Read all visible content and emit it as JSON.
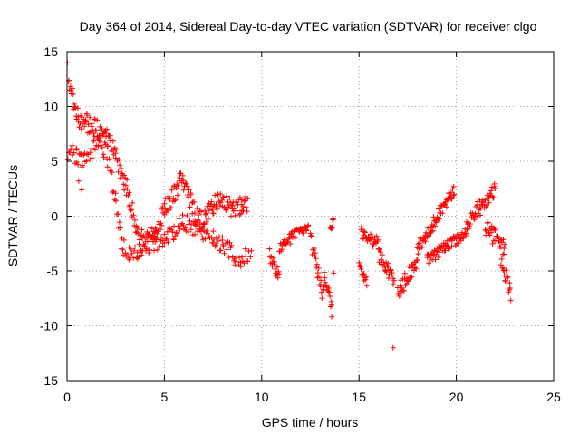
{
  "chart_data": {
    "type": "scatter",
    "title": "Day 364 of 2014, Sidereal Day-to-day VTEC variation (SDTVAR) for receiver clgo",
    "xlabel": "GPS time / hours",
    "ylabel": "SDTVAR / TECUs",
    "xlim": [
      0,
      25
    ],
    "ylim": [
      -15,
      15
    ],
    "xticks": [
      "0",
      "5",
      "10",
      "15",
      "20",
      "25"
    ],
    "yticks": [
      "15",
      "10",
      "5",
      "0",
      "-5",
      "-10",
      "-15"
    ],
    "grid": true,
    "marker": "+",
    "series_color": "#ff0000",
    "series": [
      {
        "name": "SDTVAR",
        "trace": [
          [
            0.0,
            14.0
          ],
          [
            0.1,
            12.5
          ],
          [
            0.3,
            10.5
          ],
          [
            0.6,
            9.0
          ],
          [
            1.0,
            8.5
          ],
          [
            1.5,
            8.0
          ],
          [
            2.0,
            7.5
          ],
          [
            2.5,
            5.5
          ],
          [
            3.0,
            3.0
          ],
          [
            3.3,
            1.0
          ],
          [
            3.6,
            -1.5
          ],
          [
            4.0,
            -2.5
          ],
          [
            4.5,
            -1.5
          ],
          [
            5.0,
            0.5
          ],
          [
            5.5,
            2.0
          ],
          [
            5.9,
            3.8
          ],
          [
            6.2,
            2.0
          ],
          [
            6.6,
            0.0
          ],
          [
            7.0,
            -0.5
          ],
          [
            7.5,
            1.0
          ],
          [
            8.0,
            1.5
          ],
          [
            8.5,
            0.5
          ],
          [
            9.0,
            1.0
          ],
          [
            9.3,
            1.2
          ]
        ],
        "trace_lower": [
          [
            0.0,
            6.0
          ],
          [
            0.5,
            5.5
          ],
          [
            1.0,
            5.0
          ],
          [
            1.5,
            6.5
          ],
          [
            2.0,
            6.0
          ],
          [
            2.5,
            1.5
          ],
          [
            2.8,
            -2.5
          ],
          [
            3.2,
            -3.5
          ],
          [
            3.8,
            -3.0
          ],
          [
            4.5,
            -2.5
          ],
          [
            5.0,
            -2.0
          ],
          [
            5.5,
            -1.5
          ],
          [
            6.0,
            -0.5
          ],
          [
            6.5,
            -1.0
          ],
          [
            7.0,
            -1.5
          ],
          [
            7.5,
            -2.0
          ],
          [
            8.0,
            -2.5
          ],
          [
            8.5,
            -3.5
          ],
          [
            9.0,
            -4.0
          ],
          [
            9.5,
            -3.0
          ]
        ],
        "segments": [
          {
            "x0": 10.4,
            "x1": 10.9,
            "y0": -3.5,
            "y1": -5.5,
            "spread": 1.2
          },
          {
            "x0": 10.9,
            "x1": 11.8,
            "y0": -3.0,
            "y1": -1.5,
            "spread": 1.0
          },
          {
            "x0": 11.9,
            "x1": 12.4,
            "y0": -1.5,
            "y1": -1.0,
            "spread": 0.6
          },
          {
            "x0": 12.5,
            "x1": 13.2,
            "y0": -2.0,
            "y1": -7.5,
            "spread": 1.6
          },
          {
            "x0": 13.2,
            "x1": 13.6,
            "y0": -5.0,
            "y1": -8.5,
            "spread": 1.2
          },
          {
            "x0": 13.5,
            "x1": 13.7,
            "y0": -1.0,
            "y1": -0.5,
            "spread": 0.8
          },
          {
            "x0": 15.0,
            "x1": 15.4,
            "y0": -4.5,
            "y1": -6.0,
            "spread": 1.0
          },
          {
            "x0": 15.1,
            "x1": 16.0,
            "y0": -1.5,
            "y1": -2.5,
            "spread": 1.2
          },
          {
            "x0": 16.0,
            "x1": 16.8,
            "y0": -3.5,
            "y1": -6.0,
            "spread": 1.4
          },
          {
            "x0": 17.0,
            "x1": 18.0,
            "y0": -7.0,
            "y1": -4.0,
            "spread": 1.5
          },
          {
            "x0": 18.0,
            "x1": 19.9,
            "y0": -3.0,
            "y1": 2.5,
            "spread": 1.2
          },
          {
            "x0": 18.5,
            "x1": 20.5,
            "y0": -4.0,
            "y1": -1.5,
            "spread": 1.0
          },
          {
            "x0": 20.5,
            "x1": 21.2,
            "y0": -1.0,
            "y1": 1.0,
            "spread": 1.2
          },
          {
            "x0": 21.2,
            "x1": 22.0,
            "y0": 0.5,
            "y1": 2.5,
            "spread": 1.2
          },
          {
            "x0": 21.5,
            "x1": 22.5,
            "y0": -1.0,
            "y1": -3.0,
            "spread": 1.6
          },
          {
            "x0": 22.3,
            "x1": 22.8,
            "y0": -4.0,
            "y1": -7.0,
            "spread": 1.4
          }
        ],
        "outliers": [
          [
            16.75,
            -12.0
          ],
          [
            13.6,
            -9.2
          ],
          [
            13.7,
            -5.2
          ],
          [
            0.6,
            3.2
          ],
          [
            0.75,
            2.4
          ]
        ]
      }
    ]
  }
}
